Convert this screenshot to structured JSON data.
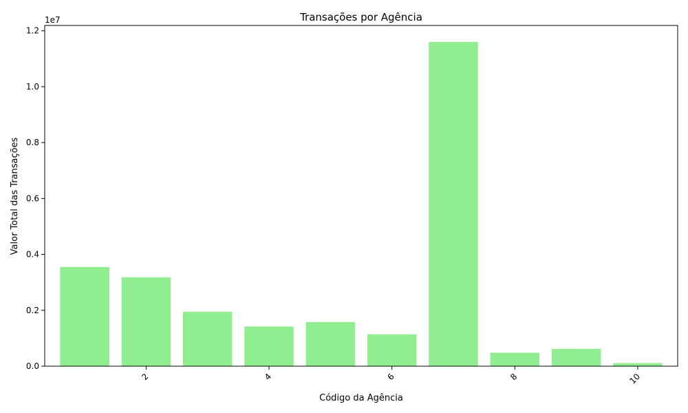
{
  "chart_data": {
    "type": "bar",
    "title": "Transações por Agência",
    "xlabel": "Código da Agência",
    "ylabel": "Valor Total das Transações",
    "y_offset_label": "1e7",
    "x": [
      1,
      2,
      3,
      4,
      5,
      6,
      7,
      8,
      9,
      10
    ],
    "values": [
      3550000,
      3180000,
      1950000,
      1420000,
      1580000,
      1140000,
      11600000,
      480000,
      620000,
      110000
    ],
    "xlim": [
      0.35,
      10.65
    ],
    "ylim": [
      0,
      12190000
    ],
    "x_ticks": [
      2,
      4,
      6,
      8,
      10
    ],
    "x_tick_labels": [
      "2",
      "4",
      "6",
      "8",
      "10"
    ],
    "y_ticks": [
      0,
      2000000,
      4000000,
      6000000,
      8000000,
      10000000,
      12000000
    ],
    "y_tick_labels": [
      "0.0",
      "0.2",
      "0.4",
      "0.6",
      "0.8",
      "1.0",
      "1.2"
    ],
    "x_tick_rotation": "45",
    "bar_color": "#90EE90",
    "grid": false,
    "legend": "none"
  }
}
